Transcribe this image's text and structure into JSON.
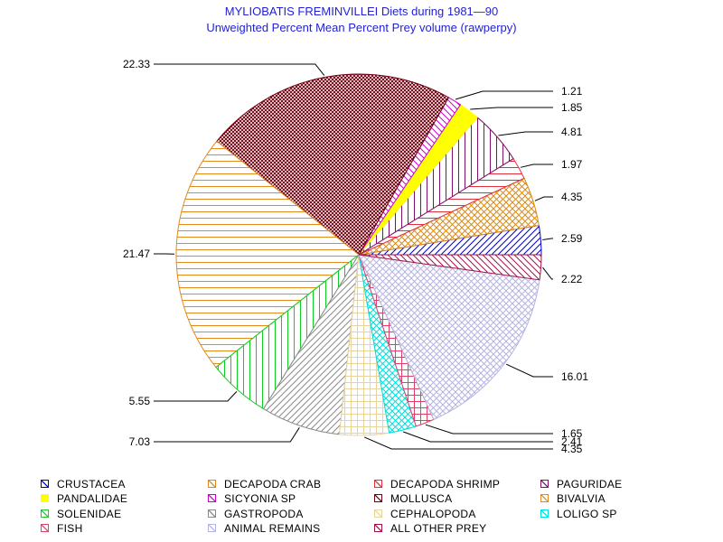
{
  "title": "MYLIOBATIS FREMINVILLEI Diets during 1981—90",
  "subtitle": "Unweighted Percent Mean Percent Prey  volume (rawperpy)",
  "chart_data": {
    "type": "pie",
    "title": "MYLIOBATIS FREMINVILLEI Diets during 1981—90",
    "subtitle": "Unweighted Percent Mean Percent Prey  volume (rawperpy)",
    "legend_position": "bottom",
    "slices": [
      {
        "name": "CRUSTACEA",
        "value": 2.59,
        "label": "2.59",
        "color": "#0000cc",
        "pattern": "diag-up"
      },
      {
        "name": "DECAPODA CRAB",
        "value": 4.35,
        "label": "4.35",
        "color": "#d98b1a",
        "pattern": "cross"
      },
      {
        "name": "DECAPODA SHRIMP",
        "value": 1.97,
        "label": "1.97",
        "color": "#e0303a",
        "pattern": "horiz"
      },
      {
        "name": "PAGURIDAE",
        "value": 4.81,
        "label": "4.81",
        "color": "#80106a",
        "pattern": "vert"
      },
      {
        "name": "PANDALIDAE",
        "value": 1.85,
        "label": "1.85",
        "color": "#ffff00",
        "pattern": "solid"
      },
      {
        "name": "SICYONIA SP",
        "value": 1.21,
        "label": "1.21",
        "color": "#cc00cc",
        "pattern": "diag-down"
      },
      {
        "name": "MOLLUSCA",
        "value": 22.33,
        "label": "22.33",
        "color": "#700010",
        "pattern": "crosshatch"
      },
      {
        "name": "BIVALVIA",
        "value": 21.47,
        "label": "21.47",
        "color": "#e38a1c",
        "pattern": "horiz"
      },
      {
        "name": "SOLENIDAE",
        "value": 5.55,
        "label": "5.55",
        "color": "#11cc22",
        "pattern": "vert"
      },
      {
        "name": "GASTROPODA",
        "value": 7.03,
        "label": "7.03",
        "color": "#8a8a8a",
        "pattern": "diag-up"
      },
      {
        "name": "CEPHALOPODA",
        "value": 4.35,
        "label": "4.35",
        "color": "#e8d49a",
        "pattern": "grid"
      },
      {
        "name": "LOLIGO SP",
        "value": 2.41,
        "label": "2.41",
        "color": "#00dddd",
        "pattern": "cross"
      },
      {
        "name": "FISH",
        "value": 1.65,
        "label": "1.65",
        "color": "#e0406a",
        "pattern": "grid"
      },
      {
        "name": "ANIMAL REMAINS",
        "value": 16.01,
        "label": "16.01",
        "color": "#b4b4e0",
        "pattern": "cross"
      },
      {
        "name": "ALL OTHER PREY",
        "value": 2.22,
        "label": "2.22",
        "color": "#a0144a",
        "pattern": "diag-down"
      }
    ]
  },
  "legend": [
    {
      "label": "CRUSTACEA",
      "color": "#0000cc"
    },
    {
      "label": "DECAPODA CRAB",
      "color": "#d98b1a"
    },
    {
      "label": "DECAPODA SHRIMP",
      "color": "#e0303a"
    },
    {
      "label": "PAGURIDAE",
      "color": "#80106a"
    },
    {
      "label": "PANDALIDAE",
      "color": "#ffff00"
    },
    {
      "label": "SICYONIA SP",
      "color": "#cc00cc"
    },
    {
      "label": "MOLLUSCA",
      "color": "#700010"
    },
    {
      "label": "BIVALVIA",
      "color": "#e38a1c"
    },
    {
      "label": "SOLENIDAE",
      "color": "#11cc22"
    },
    {
      "label": "GASTROPODA",
      "color": "#8a8a8a"
    },
    {
      "label": "CEPHALOPODA",
      "color": "#e8d49a"
    },
    {
      "label": "LOLIGO SP",
      "color": "#00dddd"
    },
    {
      "label": "FISH",
      "color": "#e0406a"
    },
    {
      "label": "ANIMAL REMAINS",
      "color": "#b4b4e0"
    },
    {
      "label": "ALL OTHER PREY",
      "color": "#a0144a"
    }
  ]
}
